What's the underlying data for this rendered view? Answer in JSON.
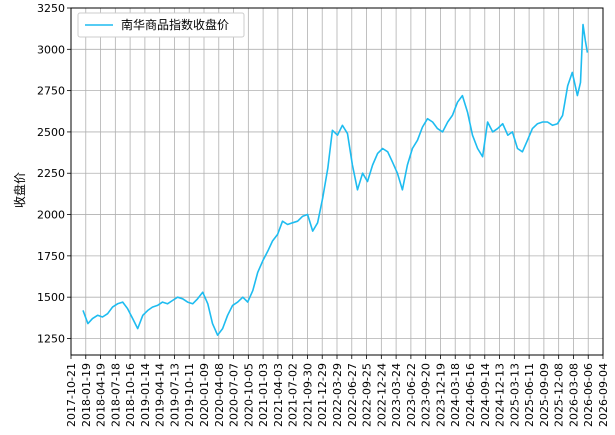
{
  "chart_data": {
    "type": "line",
    "title": "",
    "xlabel": "",
    "ylabel": "收盘价",
    "legend_position": "top-left",
    "grid": true,
    "ylim": [
      1150,
      3250
    ],
    "yticks": [
      1250,
      1500,
      1750,
      2000,
      2250,
      2500,
      2750,
      3000,
      3250
    ],
    "xticks": [
      "2017-10-21",
      "2018-01-19",
      "2018-04-19",
      "2018-07-18",
      "2018-10-16",
      "2019-01-14",
      "2019-04-14",
      "2019-07-13",
      "2019-10-11",
      "2020-01-09",
      "2020-04-08",
      "2020-07-07",
      "2020-10-05",
      "2021-01-03",
      "2021-04-03",
      "2021-07-02",
      "2021-09-30",
      "2021-12-29",
      "2022-03-29",
      "2022-06-27",
      "2022-09-25",
      "2022-12-24",
      "2023-03-24",
      "2023-06-22",
      "2023-09-20",
      "2023-12-19",
      "2024-03-18",
      "2024-06-16",
      "2024-09-14",
      "2024-12-13",
      "2025-03-13",
      "2025-06-11",
      "2025-09-09",
      "2025-12-08",
      "2026-03-08",
      "2026-06-06",
      "2026-09-04"
    ],
    "series": [
      {
        "name": "南华商品指数收盘价",
        "color": "#1ebcf0",
        "x": [
          "2018-01-02",
          "2018-02-01",
          "2018-03-01",
          "2018-04-01",
          "2018-05-01",
          "2018-06-01",
          "2018-07-01",
          "2018-08-01",
          "2018-09-01",
          "2018-10-01",
          "2018-11-01",
          "2018-12-01",
          "2019-01-01",
          "2019-02-01",
          "2019-03-01",
          "2019-04-01",
          "2019-05-01",
          "2019-06-01",
          "2019-07-01",
          "2019-08-01",
          "2019-09-01",
          "2019-10-01",
          "2019-11-01",
          "2019-12-01",
          "2020-01-01",
          "2020-02-01",
          "2020-03-01",
          "2020-04-01",
          "2020-05-01",
          "2020-06-01",
          "2020-07-01",
          "2020-08-01",
          "2020-09-01",
          "2020-10-01",
          "2020-11-01",
          "2020-12-01",
          "2021-01-01",
          "2021-02-01",
          "2021-03-01",
          "2021-04-01",
          "2021-05-01",
          "2021-06-01",
          "2021-07-01",
          "2021-08-01",
          "2021-09-01",
          "2021-10-01",
          "2021-11-01",
          "2021-12-01",
          "2022-01-01",
          "2022-02-01",
          "2022-03-01",
          "2022-04-01",
          "2022-05-01",
          "2022-06-01",
          "2022-07-01",
          "2022-08-01",
          "2022-09-01",
          "2022-10-01",
          "2022-11-01",
          "2022-12-01",
          "2023-01-01",
          "2023-02-01",
          "2023-03-01",
          "2023-04-01",
          "2023-05-01",
          "2023-06-01",
          "2023-07-01",
          "2023-08-01",
          "2023-09-01",
          "2023-10-01",
          "2023-11-01",
          "2023-12-01",
          "2024-01-01",
          "2024-02-01",
          "2024-03-01",
          "2024-04-01",
          "2024-05-01",
          "2024-06-01",
          "2024-07-01",
          "2024-08-01",
          "2024-09-01",
          "2024-10-01",
          "2024-11-01",
          "2024-12-01",
          "2025-01-01",
          "2025-02-01",
          "2025-03-01",
          "2025-04-01",
          "2025-05-01",
          "2025-06-01",
          "2025-07-01",
          "2025-08-01",
          "2025-09-01",
          "2025-10-01",
          "2025-11-01",
          "2025-12-01",
          "2026-01-01",
          "2026-02-01",
          "2026-03-01",
          "2026-04-01",
          "2026-04-20",
          "2026-05-05",
          "2026-05-20",
          "2026-06-01"
        ],
        "values": [
          1420,
          1340,
          1370,
          1390,
          1380,
          1400,
          1440,
          1460,
          1470,
          1430,
          1370,
          1310,
          1390,
          1420,
          1440,
          1450,
          1470,
          1460,
          1480,
          1500,
          1490,
          1470,
          1460,
          1490,
          1530,
          1460,
          1340,
          1270,
          1310,
          1390,
          1450,
          1470,
          1500,
          1470,
          1540,
          1650,
          1720,
          1780,
          1840,
          1880,
          1960,
          1940,
          1950,
          1960,
          1990,
          2000,
          1900,
          1950,
          2100,
          2280,
          2510,
          2480,
          2540,
          2490,
          2300,
          2150,
          2250,
          2200,
          2300,
          2370,
          2400,
          2380,
          2320,
          2250,
          2150,
          2300,
          2400,
          2450,
          2530,
          2580,
          2560,
          2520,
          2500,
          2560,
          2600,
          2680,
          2720,
          2620,
          2480,
          2400,
          2350,
          2560,
          2500,
          2520,
          2550,
          2480,
          2500,
          2400,
          2380,
          2450,
          2520,
          2550,
          2560,
          2560,
          2540,
          2550,
          2600,
          2780,
          2860,
          2720,
          2800,
          3150,
          3050,
          2980
        ]
      }
    ]
  }
}
